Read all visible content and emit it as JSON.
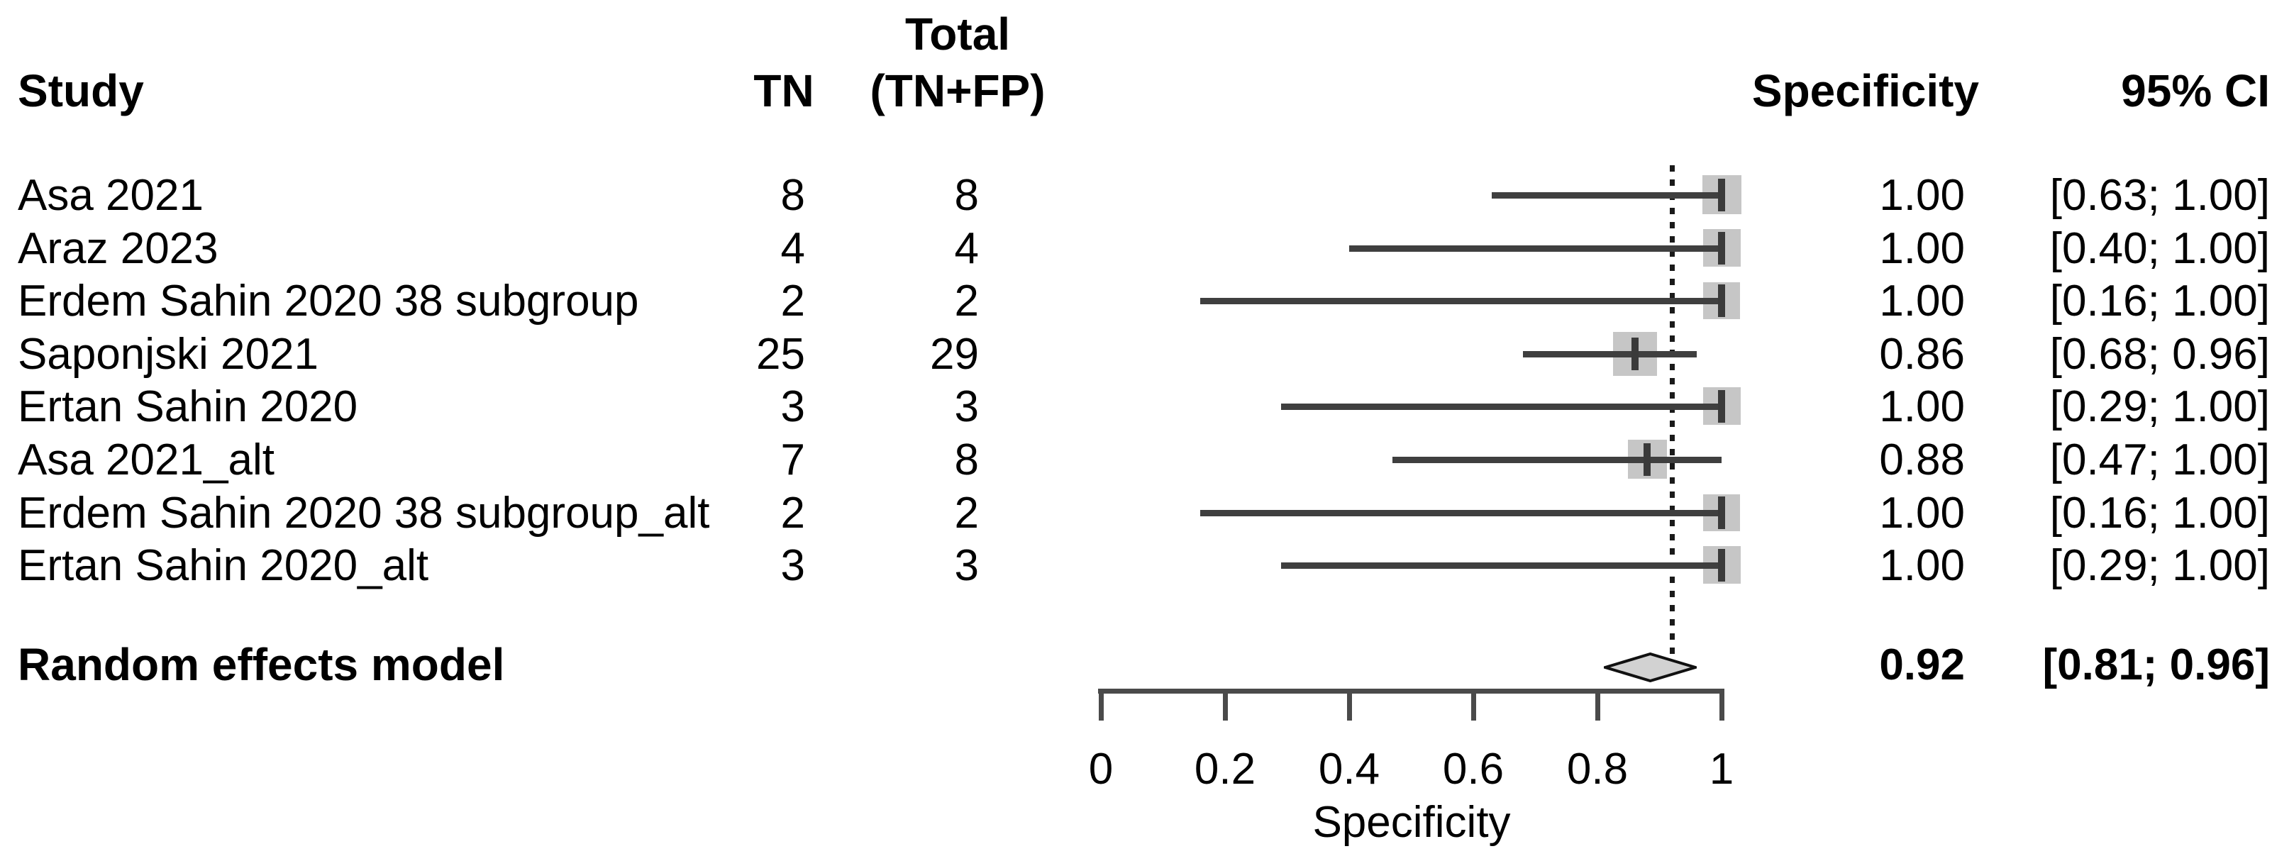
{
  "header": {
    "study": "Study",
    "tn": "TN",
    "total_line1": "Total",
    "total_line2": "(TN+FP)",
    "specificity": "Specificity",
    "ci": "95% CI"
  },
  "summary": {
    "label": "Random effects model",
    "specificity": "0.92",
    "ci": "[0.81; 0.96]"
  },
  "axis": {
    "xlabel": "Specificity"
  },
  "chart_data": {
    "type": "forest",
    "title": "",
    "xlabel": "Specificity",
    "xlim": [
      0,
      1
    ],
    "x_tick_values": [
      0,
      0.2,
      0.4,
      0.6,
      0.8,
      1
    ],
    "x_tick_labels": [
      "0",
      "0.2",
      "0.4",
      "0.6",
      "0.8",
      "1"
    ],
    "grid": false,
    "reference_line": 0.92,
    "columns": [
      "Study",
      "TN",
      "Total (TN+FP)",
      "Specificity",
      "95% CI"
    ],
    "studies": [
      {
        "name": "Asa 2021",
        "tn": 8,
        "total": 8,
        "est": 1.0,
        "lo": 0.63,
        "hi": 1.0,
        "est_label": "1.00",
        "ci_label": "[0.63; 1.00]"
      },
      {
        "name": "Araz 2023",
        "tn": 4,
        "total": 4,
        "est": 1.0,
        "lo": 0.4,
        "hi": 1.0,
        "est_label": "1.00",
        "ci_label": "[0.40; 1.00]"
      },
      {
        "name": "Erdem Sahin 2020 38 subgroup",
        "tn": 2,
        "total": 2,
        "est": 1.0,
        "lo": 0.16,
        "hi": 1.0,
        "est_label": "1.00",
        "ci_label": "[0.16; 1.00]"
      },
      {
        "name": "Saponjski 2021",
        "tn": 25,
        "total": 29,
        "est": 0.86,
        "lo": 0.68,
        "hi": 0.96,
        "est_label": "0.86",
        "ci_label": "[0.68; 0.96]"
      },
      {
        "name": "Ertan Sahin 2020",
        "tn": 3,
        "total": 3,
        "est": 1.0,
        "lo": 0.29,
        "hi": 1.0,
        "est_label": "1.00",
        "ci_label": "[0.29; 1.00]"
      },
      {
        "name": "Asa 2021_alt",
        "tn": 7,
        "total": 8,
        "est": 0.88,
        "lo": 0.47,
        "hi": 1.0,
        "est_label": "0.88",
        "ci_label": "[0.47; 1.00]"
      },
      {
        "name": "Erdem Sahin 2020 38 subgroup_alt",
        "tn": 2,
        "total": 2,
        "est": 1.0,
        "lo": 0.16,
        "hi": 1.0,
        "est_label": "1.00",
        "ci_label": "[0.16; 1.00]"
      },
      {
        "name": "Ertan Sahin 2020_alt",
        "tn": 3,
        "total": 3,
        "est": 1.0,
        "lo": 0.29,
        "hi": 1.0,
        "est_label": "1.00",
        "ci_label": "[0.29; 1.00]"
      }
    ],
    "pooled": {
      "name": "Random effects model",
      "est": 0.92,
      "lo": 0.81,
      "hi": 0.96,
      "est_label": "0.92",
      "ci_label": "[0.81; 0.96]"
    },
    "style": {
      "square_color": "#c6c6c6",
      "ci_line_color": "#3f3f3f",
      "estimate_tick_color": "#3a3a3a",
      "diamond_fill": "#d2d2d2",
      "diamond_stroke": "#111111",
      "axis_color": "#4a4a4a",
      "reference_line_color": "#1a1a1a",
      "legend": "none"
    }
  }
}
